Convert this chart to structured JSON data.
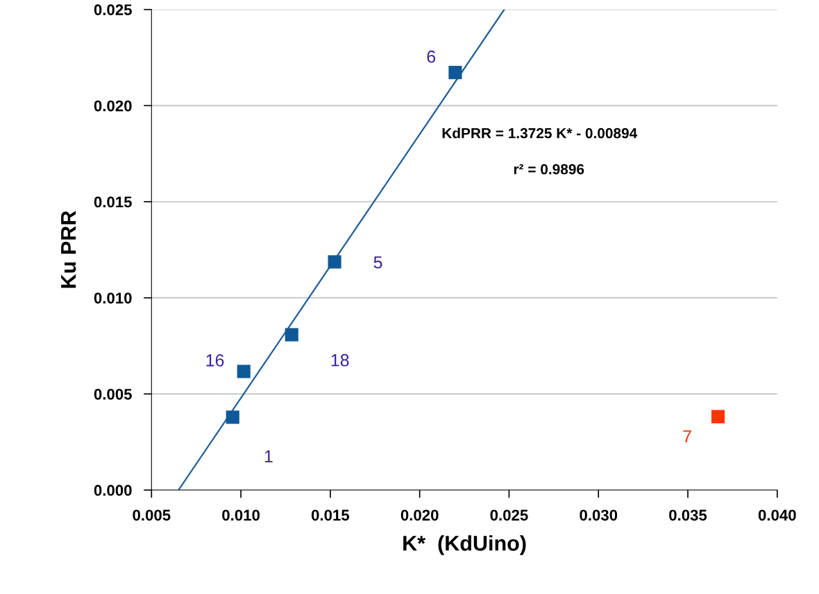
{
  "chart_data": {
    "type": "scatter",
    "xlabel": "K*  (KdUino)",
    "ylabel": "Ku PRR",
    "series": [
      {
        "type": "line",
        "color": "#1f5c99",
        "x": [
          0.00651,
          0.02473
        ],
        "values": [
          0,
          0.025
        ],
        "marker": "none"
      },
      {
        "color": "#0f5a96",
        "x": [
          0.00954,
          0.01016,
          0.01284,
          0.01524,
          0.02199
        ],
        "values": [
          0.00379,
          0.00617,
          0.00808,
          0.01187,
          0.02172
        ]
      },
      {
        "color": "#ff3300",
        "x": [
          0.03669
        ],
        "values": [
          0.00382
        ]
      }
    ],
    "annotations": [
      "KdPRR = 1.3725 K* - 0.00894",
      "r² = 0.9896",
      "1",
      {
        "text": "16",
        "x": 0.01016,
        "y": 0.00617
      },
      {
        "text": "18",
        "x": 0.01284,
        "y": 0.00808
      },
      {
        "text": "5",
        "x": 0.01524,
        "y": 0.01187
      },
      {
        "text": "6",
        "x": 0.02199,
        "y": 0.02172
      },
      {
        "text": "7",
        "x": 0.03669,
        "y": 0.00382
      }
    ],
    "xlim": [
      0.005,
      0.04
    ],
    "ylim": [
      0,
      0.025
    ],
    "xticks": [
      0.005,
      {
        "value": 0.01,
        "label": "0.010"
      },
      0.015,
      {
        "value": 0.02,
        "label": "0.020"
      },
      0.025,
      {
        "value": 0.03,
        "label": "0.030"
      },
      0.035,
      {
        "value": 0.04,
        "label": "0.040"
      }
    ],
    "yticks": [
      {
        "value": 0,
        "label": "0.000"
      },
      0.005,
      {
        "value": 0.01,
        "label": "0.010"
      },
      0.015,
      {
        "value": 0.02,
        "label": "0.020"
      },
      0.025
    ],
    "grid": "y",
    "marker": "square",
    "legend": false
  }
}
